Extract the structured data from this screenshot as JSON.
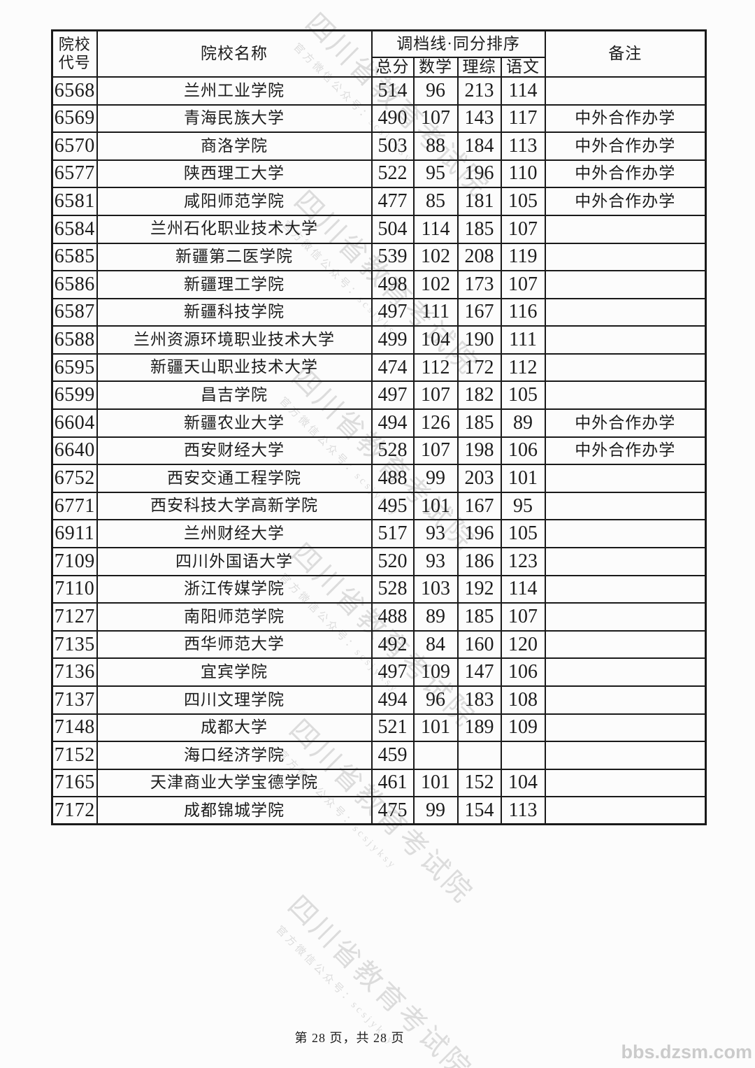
{
  "page": {
    "footer_page_info": "第 28 页，共 28 页",
    "site_watermark": "bbs.dzsm.com"
  },
  "watermark": {
    "line1": "四川省教育考试院",
    "line2": "官方微信公众号：scsjyksy"
  },
  "table": {
    "headers": {
      "code_line1": "院校",
      "code_line2": "代号",
      "name": "院校名称",
      "group": "调档线·同分排序",
      "sub": [
        "总分",
        "数学",
        "理综",
        "语文"
      ],
      "remark": "备注"
    },
    "rows": [
      {
        "code": "6568",
        "name": "兰州工业学院",
        "total": "514",
        "math": "96",
        "sci": "213",
        "chn": "114",
        "remark": ""
      },
      {
        "code": "6569",
        "name": "青海民族大学",
        "total": "490",
        "math": "107",
        "sci": "143",
        "chn": "117",
        "remark": "中外合作办学"
      },
      {
        "code": "6570",
        "name": "商洛学院",
        "total": "503",
        "math": "88",
        "sci": "184",
        "chn": "113",
        "remark": "中外合作办学"
      },
      {
        "code": "6577",
        "name": "陕西理工大学",
        "total": "522",
        "math": "95",
        "sci": "196",
        "chn": "110",
        "remark": "中外合作办学"
      },
      {
        "code": "6581",
        "name": "咸阳师范学院",
        "total": "477",
        "math": "85",
        "sci": "181",
        "chn": "105",
        "remark": "中外合作办学"
      },
      {
        "code": "6584",
        "name": "兰州石化职业技术大学",
        "total": "504",
        "math": "114",
        "sci": "185",
        "chn": "107",
        "remark": ""
      },
      {
        "code": "6585",
        "name": "新疆第二医学院",
        "total": "539",
        "math": "102",
        "sci": "208",
        "chn": "119",
        "remark": ""
      },
      {
        "code": "6586",
        "name": "新疆理工学院",
        "total": "498",
        "math": "102",
        "sci": "173",
        "chn": "107",
        "remark": ""
      },
      {
        "code": "6587",
        "name": "新疆科技学院",
        "total": "497",
        "math": "111",
        "sci": "167",
        "chn": "116",
        "remark": ""
      },
      {
        "code": "6588",
        "name": "兰州资源环境职业技术大学",
        "total": "499",
        "math": "104",
        "sci": "190",
        "chn": "111",
        "remark": ""
      },
      {
        "code": "6595",
        "name": "新疆天山职业技术大学",
        "total": "474",
        "math": "112",
        "sci": "172",
        "chn": "112",
        "remark": ""
      },
      {
        "code": "6599",
        "name": "昌吉学院",
        "total": "497",
        "math": "107",
        "sci": "182",
        "chn": "105",
        "remark": ""
      },
      {
        "code": "6604",
        "name": "新疆农业大学",
        "total": "494",
        "math": "126",
        "sci": "185",
        "chn": "89",
        "remark": "中外合作办学"
      },
      {
        "code": "6640",
        "name": "西安财经大学",
        "total": "528",
        "math": "107",
        "sci": "198",
        "chn": "106",
        "remark": "中外合作办学"
      },
      {
        "code": "6752",
        "name": "西安交通工程学院",
        "total": "488",
        "math": "99",
        "sci": "203",
        "chn": "101",
        "remark": ""
      },
      {
        "code": "6771",
        "name": "西安科技大学高新学院",
        "total": "495",
        "math": "101",
        "sci": "167",
        "chn": "95",
        "remark": ""
      },
      {
        "code": "6911",
        "name": "兰州财经大学",
        "total": "517",
        "math": "93",
        "sci": "196",
        "chn": "105",
        "remark": ""
      },
      {
        "code": "7109",
        "name": "四川外国语大学",
        "total": "520",
        "math": "93",
        "sci": "186",
        "chn": "123",
        "remark": ""
      },
      {
        "code": "7110",
        "name": "浙江传媒学院",
        "total": "528",
        "math": "103",
        "sci": "192",
        "chn": "114",
        "remark": ""
      },
      {
        "code": "7127",
        "name": "南阳师范学院",
        "total": "488",
        "math": "89",
        "sci": "185",
        "chn": "107",
        "remark": ""
      },
      {
        "code": "7135",
        "name": "西华师范大学",
        "total": "492",
        "math": "84",
        "sci": "160",
        "chn": "120",
        "remark": ""
      },
      {
        "code": "7136",
        "name": "宜宾学院",
        "total": "497",
        "math": "109",
        "sci": "147",
        "chn": "106",
        "remark": ""
      },
      {
        "code": "7137",
        "name": "四川文理学院",
        "total": "494",
        "math": "96",
        "sci": "183",
        "chn": "108",
        "remark": ""
      },
      {
        "code": "7148",
        "name": "成都大学",
        "total": "521",
        "math": "101",
        "sci": "189",
        "chn": "109",
        "remark": ""
      },
      {
        "code": "7152",
        "name": "海口经济学院",
        "total": "459",
        "math": "",
        "sci": "",
        "chn": "",
        "remark": ""
      },
      {
        "code": "7165",
        "name": "天津商业大学宝德学院",
        "total": "461",
        "math": "101",
        "sci": "152",
        "chn": "104",
        "remark": ""
      },
      {
        "code": "7172",
        "name": "成都锦城学院",
        "total": "475",
        "math": "99",
        "sci": "154",
        "chn": "113",
        "remark": ""
      }
    ]
  }
}
